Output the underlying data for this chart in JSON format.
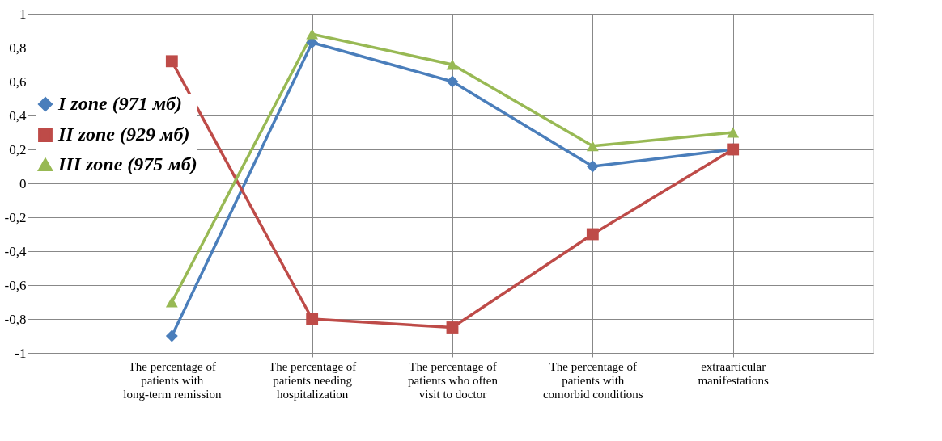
{
  "chart_data": {
    "type": "line",
    "categories": [
      null,
      "The percentage of patients with long-term remission",
      "The percentage of patients needing hospitalization",
      "The percentage of patients who often visit to doctor",
      "The percentage of patients with comorbid conditions",
      "extraarticular manifestations"
    ],
    "series": [
      {
        "name": "I zone (971 мб)",
        "color": "#4a7ebb",
        "marker": "diamond",
        "values": [
          null,
          -0.9,
          0.83,
          0.6,
          0.1,
          0.2
        ]
      },
      {
        "name": "II zone (929 мб)",
        "color": "#be4b48",
        "marker": "square",
        "values": [
          null,
          0.72,
          -0.8,
          -0.85,
          -0.3,
          0.2
        ]
      },
      {
        "name": "III zone (975 мб)",
        "color": "#98b954",
        "marker": "triangle",
        "values": [
          null,
          -0.7,
          0.88,
          0.7,
          0.22,
          0.3
        ]
      }
    ],
    "ylim": [
      -1,
      1
    ],
    "yticks": [
      1,
      {
        "value": 0.8,
        "label": "0,8"
      },
      {
        "value": 0.6,
        "label": "0,6"
      },
      {
        "value": 0.4,
        "label": "0,4"
      },
      {
        "value": 0.2,
        "label": "0,2"
      },
      0,
      {
        "value": -0.2,
        "label": "-0,2"
      },
      {
        "value": -0.4,
        "label": "-0,4"
      },
      {
        "value": -0.6,
        "label": "-0,6"
      },
      {
        "value": -0.8,
        "label": "-0,8"
      },
      -1
    ],
    "grid": true,
    "legend": "left",
    "line_style": "solid"
  }
}
